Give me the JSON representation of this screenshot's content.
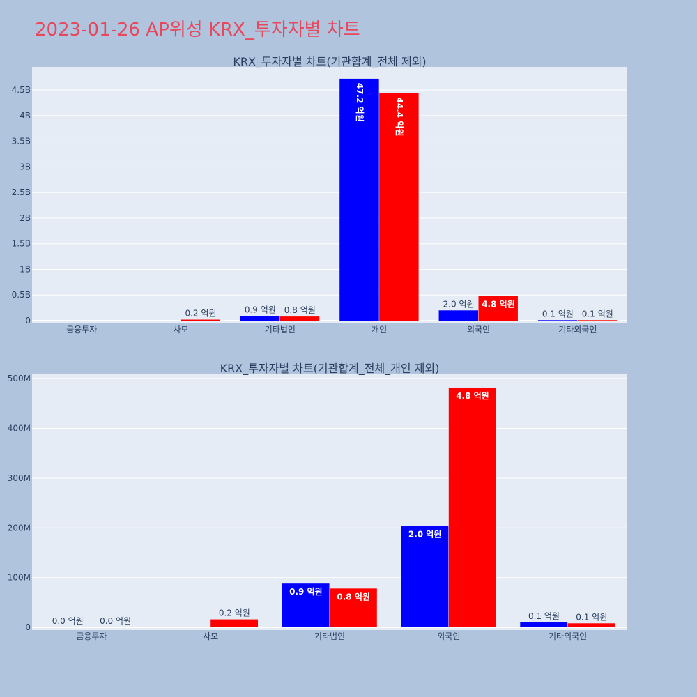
{
  "title": "2023-01-26 AP위성 KRX_투자자별 차트",
  "colors": {
    "series_a": "#0000ff",
    "series_b": "#ff0000",
    "plot_bg": "#e5ecf6",
    "page_bg": "#b0c4de",
    "title": "#e8475c"
  },
  "chart_data": [
    {
      "type": "bar",
      "title": "KRX_투자자별 차트(기관합계_전체 제외)",
      "categories": [
        "금융투자",
        "사모",
        "기타법인",
        "개인",
        "외국인",
        "기타외국인"
      ],
      "ylim": [
        0,
        4950000000
      ],
      "yticks": [
        0,
        500000000,
        1000000000,
        1500000000,
        2000000000,
        2500000000,
        3000000000,
        3500000000,
        4000000000,
        4500000000
      ],
      "ytick_labels": [
        "0",
        "0.5B",
        "1B",
        "1.5B",
        "2B",
        "2.5B",
        "3B",
        "3.5B",
        "4B",
        "4.5B"
      ],
      "grid": true,
      "series": [
        {
          "color": "#0000ff",
          "values": [
            0,
            0,
            90000000,
            4720000000,
            200000000,
            10000000
          ],
          "labels": [
            "",
            "",
            "0.9 억원",
            "47.2 억원",
            "2.0 억원",
            "0.1 억원"
          ],
          "label_pos": [
            "out",
            "out",
            "out",
            "in-vert",
            "out",
            "out"
          ]
        },
        {
          "color": "#ff0000",
          "values": [
            0,
            20000000,
            80000000,
            4440000000,
            480000000,
            10000000
          ],
          "labels": [
            "",
            "0.2 억원",
            "0.8 억원",
            "44.4 억원",
            "4.8 억원",
            "0.1 억원"
          ],
          "label_pos": [
            "out",
            "out",
            "out",
            "in-vert",
            "in",
            "out"
          ]
        }
      ]
    },
    {
      "type": "bar",
      "title": "KRX_투자자별 차트(기관합계_전체_개인 제외)",
      "categories": [
        "금융투자",
        "사모",
        "기타법인",
        "외국인",
        "기타외국인"
      ],
      "ylim": [
        0,
        510000000
      ],
      "yticks": [
        0,
        100000000,
        200000000,
        300000000,
        400000000,
        500000000
      ],
      "ytick_labels": [
        "0",
        "100M",
        "200M",
        "300M",
        "400M",
        "500M"
      ],
      "grid": true,
      "series": [
        {
          "color": "#0000ff",
          "values": [
            0,
            0,
            88000000,
            204000000,
            10000000
          ],
          "labels": [
            "0.0 억원",
            "",
            "0.9 억원",
            "2.0 억원",
            "0.1 억원"
          ],
          "label_pos": [
            "out",
            "out",
            "in",
            "in",
            "out"
          ]
        },
        {
          "color": "#ff0000",
          "values": [
            0,
            16000000,
            78000000,
            482000000,
            8000000
          ],
          "labels": [
            "0.0 억원",
            "0.2 억원",
            "0.8 억원",
            "4.8 억원",
            "0.1 억원"
          ],
          "label_pos": [
            "out",
            "out",
            "in",
            "in",
            "out"
          ]
        }
      ]
    }
  ]
}
